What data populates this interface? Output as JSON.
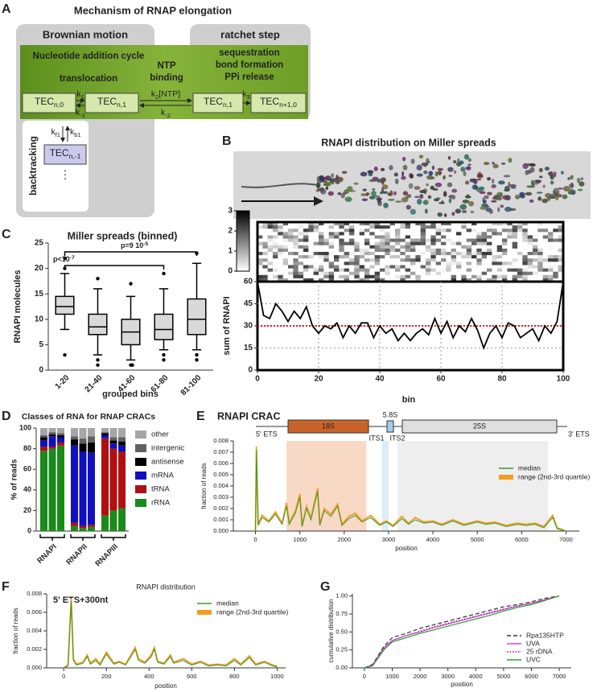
{
  "panels": [
    "A",
    "B",
    "C",
    "D",
    "E",
    "F",
    "G"
  ],
  "diagram": {
    "title": "Mechanism of RNAP elongation",
    "brownian": "Brownian motion",
    "ratchet": "ratchet step",
    "cycle": "Nucleotide addition cycle",
    "translocation": "translocation",
    "ntp": [
      "NTP",
      "binding"
    ],
    "ratchet_steps": [
      "sequestration",
      "bond formation",
      "PPi release"
    ],
    "tec": [
      {
        "main": "TEC",
        "sub": "n,0"
      },
      {
        "main": "TEC",
        "sub": "n,1"
      },
      {
        "main": "TEC",
        "sub": "n,1"
      },
      {
        "main": "TEC",
        "sub": "n+1,0"
      }
    ],
    "rates": [
      {
        "main": "k",
        "sub": "1"
      },
      {
        "main": "k",
        "sub": "-1"
      },
      {
        "main": "k",
        "sub": "2",
        "tail": "[NTP]"
      },
      {
        "main": "k",
        "sub": "-2"
      },
      {
        "main": "k",
        "sub": "3"
      }
    ],
    "backtracking": "backtracking",
    "backtrack_rates": [
      {
        "main": "k",
        "sub": "f1"
      },
      {
        "main": "k",
        "sub": "b1"
      }
    ],
    "backtrack_tec": {
      "main": "TEC",
      "sub": "n,-1"
    },
    "dots": "⋮"
  },
  "chart_data": [
    {
      "type": "box",
      "title": "Miller spreads (binned)",
      "x_label": "grouped bins",
      "y_label": "RNAPI molecules",
      "categories": [
        "1-20",
        "21-40",
        "41-60",
        "61-80",
        "81-100"
      ],
      "boxes": [
        {
          "whislo": 8,
          "q1": 11,
          "med": 12.5,
          "q3": 14.5,
          "whishi": 19,
          "fliers": [
            3,
            20,
            22
          ]
        },
        {
          "whislo": 3,
          "q1": 7,
          "med": 8.5,
          "q3": 11,
          "whishi": 16,
          "fliers": [
            1,
            2,
            18
          ]
        },
        {
          "whislo": 2,
          "q1": 5,
          "med": 7.5,
          "q3": 10,
          "whishi": 14.5,
          "fliers": [
            1,
            1,
            17
          ]
        },
        {
          "whislo": 4,
          "q1": 6,
          "med": 8,
          "q3": 11,
          "whishi": 16,
          "fliers": [
            2,
            3,
            19
          ]
        },
        {
          "whislo": 4,
          "q1": 7,
          "med": 10,
          "q3": 14,
          "whishi": 21,
          "fliers": [
            2,
            3,
            23
          ]
        }
      ],
      "color": "#d9d9d9",
      "ylim": [
        0,
        25
      ],
      "yticks": [
        0,
        5,
        10,
        15,
        20,
        25
      ],
      "annotations": [
        {
          "text": "p<10",
          "sup": "-7"
        },
        {
          "text": "p=9 10",
          "sup": "-5"
        }
      ]
    },
    {
      "type": "heatmap",
      "clim": [
        0,
        3
      ],
      "cticks": [
        0,
        1,
        2,
        3
      ]
    },
    {
      "type": "line",
      "title": "RNAPI distribution on Miller spreads",
      "x_label": "bin",
      "y_label": "sum of RNAPI",
      "x": [
        0,
        2,
        4,
        6,
        8,
        10,
        12,
        14,
        16,
        18,
        20,
        22,
        24,
        26,
        28,
        30,
        32,
        34,
        36,
        38,
        40,
        42,
        44,
        46,
        48,
        50,
        52,
        54,
        56,
        58,
        60,
        62,
        64,
        66,
        68,
        70,
        72,
        74,
        76,
        78,
        80,
        82,
        84,
        86,
        88,
        90,
        92,
        94,
        96,
        98,
        100
      ],
      "series": [
        {
          "name": "sum",
          "color": "#000000",
          "values": [
            60,
            37,
            35,
            45,
            40,
            33,
            40,
            35,
            43,
            30,
            25,
            30,
            28,
            32,
            22,
            30,
            25,
            32,
            32,
            22,
            30,
            25,
            28,
            20,
            25,
            20,
            25,
            28,
            24,
            35,
            25,
            33,
            22,
            30,
            26,
            35,
            27,
            15,
            25,
            30,
            22,
            32,
            30,
            22,
            25,
            28,
            20,
            30,
            25,
            33,
            60
          ]
        }
      ],
      "xlim": [
        0,
        100
      ],
      "xticks": [
        0,
        20,
        40,
        60,
        80,
        100
      ],
      "ylim": [
        0,
        60
      ],
      "yticks": [
        0,
        15,
        30,
        45,
        60
      ],
      "grid": true,
      "reference_line": {
        "value": 30,
        "color": "#e00000"
      }
    },
    {
      "type": "stacked_bar",
      "title": "Classes of RNA for RNAP CRACs",
      "y_label": "% of reads",
      "categories": [
        null,
        null,
        null,
        null,
        null,
        null,
        null,
        null,
        null
      ],
      "groups": [
        "RNAPI",
        "RNAPII",
        "RNAPIII"
      ],
      "series": [
        {
          "name": "rRNA",
          "color": "#1a8a1a",
          "values": [
            78,
            80,
            83,
            5,
            3,
            4,
            15,
            20,
            22
          ]
        },
        {
          "name": "tRNA",
          "color": "#b01010",
          "values": [
            4,
            2,
            3,
            3,
            2,
            2,
            75,
            60,
            55
          ]
        },
        {
          "name": "mRNA",
          "color": "#1010c0",
          "values": [
            6,
            10,
            5,
            75,
            72,
            70,
            3,
            5,
            6
          ]
        },
        {
          "name": "antisense",
          "color": "#000000",
          "values": [
            3,
            2,
            2,
            6,
            8,
            10,
            2,
            3,
            4
          ]
        },
        {
          "name": "intergenic",
          "color": "#606060",
          "values": [
            2,
            2,
            2,
            3,
            5,
            6,
            1,
            3,
            4
          ]
        },
        {
          "name": "other",
          "color": "#a6a6a6",
          "values": [
            7,
            4,
            5,
            8,
            10,
            8,
            4,
            9,
            9
          ]
        }
      ],
      "ylim": [
        0,
        100
      ],
      "yticks": [
        0,
        20,
        40,
        60,
        80,
        100
      ]
    },
    {
      "type": "line",
      "title": "RNAPI CRAC",
      "x_label": "position",
      "y_label": "fraction of reads",
      "gene_map": [
        "5' ETS",
        "18S",
        "5.8S",
        "ITS1",
        "ITS2",
        "25S",
        "3' ETS"
      ],
      "shaded_regions": [
        {
          "start": 700,
          "end": 2500,
          "color": "#f7d9c6"
        },
        {
          "start": 2850,
          "end": 3000,
          "color": "#dcecf8"
        },
        {
          "start": 3200,
          "end": 6600,
          "color": "#eeeeee"
        }
      ],
      "x": [
        0,
        20,
        60,
        150,
        300,
        450,
        600,
        700,
        760,
        900,
        1000,
        1050,
        1150,
        1250,
        1400,
        1450,
        1550,
        1700,
        1850,
        1950,
        2100,
        2250,
        2400,
        2600,
        2800,
        2950,
        3100,
        3300,
        3450,
        3600,
        3800,
        4000,
        4200,
        4450,
        4700,
        5000,
        5200,
        5400,
        5650,
        5900,
        6100,
        6300,
        6500,
        6700,
        6800,
        7000
      ],
      "series": [
        {
          "name": "range (2nd-3rd quartile)",
          "color": "#f39c1f",
          "values": [
            0,
            0.0075,
            0.0006,
            0.0014,
            0.0009,
            0.0017,
            0.0007,
            0.0025,
            0.0007,
            0.0018,
            0.0033,
            0.0005,
            0.0022,
            0.0012,
            0.0038,
            0.0006,
            0.002,
            0.0015,
            0.0024,
            0.0006,
            0.0013,
            0.0016,
            0.0009,
            0.0014,
            0.0006,
            0.0009,
            0.0005,
            0.0013,
            0.0007,
            0.0012,
            0.0008,
            0.0009,
            0.0006,
            0.001,
            0.0006,
            0.0009,
            0.0007,
            0.0008,
            0.0005,
            0.0007,
            0.0006,
            0.0007,
            0.0004,
            0.0014,
            0.0003,
            0
          ]
        },
        {
          "name": "median",
          "color": "#3a9a2a",
          "values": [
            0,
            0.0072,
            0.0005,
            0.0012,
            0.0008,
            0.0015,
            0.0006,
            0.0022,
            0.0006,
            0.0016,
            0.003,
            0.0004,
            0.002,
            0.001,
            0.0035,
            0.0005,
            0.0018,
            0.0013,
            0.0022,
            0.0005,
            0.0011,
            0.0014,
            0.0008,
            0.0012,
            0.0005,
            0.0008,
            0.0004,
            0.0011,
            0.0006,
            0.001,
            0.0007,
            0.0008,
            0.0005,
            0.0009,
            0.0005,
            0.0008,
            0.0006,
            0.0007,
            0.0004,
            0.0006,
            0.0005,
            0.0006,
            0.0003,
            0.0012,
            0.0002,
            0
          ]
        }
      ],
      "xlim": [
        -500,
        7300
      ],
      "xticks": [
        0,
        1000,
        2000,
        3000,
        4000,
        5000,
        6000,
        7000
      ],
      "ylim": [
        0,
        0.008
      ],
      "yticks": [
        {
          "value": 0,
          "label": "0.000"
        },
        {
          "value": 0.001,
          "label": "0.001"
        },
        {
          "value": 0.002,
          "label": "0.002"
        },
        {
          "value": 0.003,
          "label": "0.003"
        },
        {
          "value": 0.004,
          "label": "0.004"
        },
        {
          "value": 0.005,
          "label": "0.005"
        },
        {
          "value": 0.006,
          "label": "0.006"
        },
        {
          "value": 0.007,
          "label": "0.007"
        },
        {
          "value": 0.008,
          "label": "0.008"
        }
      ],
      "legend": "upper right"
    },
    {
      "type": "line",
      "title": "RNAPI distribution",
      "annotation": "5' ETS+300nt",
      "x_label": "position",
      "y_label": "fraction of reads",
      "x": [
        0,
        20,
        35,
        45,
        60,
        90,
        110,
        125,
        150,
        170,
        200,
        215,
        235,
        260,
        290,
        320,
        335,
        350,
        380,
        410,
        425,
        440,
        470,
        500,
        515,
        560,
        600,
        640,
        680,
        720,
        760,
        800,
        830,
        870,
        900,
        940,
        980,
        1000
      ],
      "series": [
        {
          "name": "range (2nd-3rd quartile)",
          "color": "#f39c1f",
          "values": [
            0,
            0.0003,
            0.0075,
            0.001,
            0.0004,
            0.0006,
            0.0014,
            0.0005,
            0.001,
            0.0004,
            0.0017,
            0.0012,
            0.0005,
            0.0007,
            0.0004,
            0.0016,
            0.0022,
            0.001,
            0.0006,
            0.0014,
            0.0022,
            0.0007,
            0.0005,
            0.0014,
            0.0006,
            0.001,
            0.0004,
            0.0007,
            0.0003,
            0.0004,
            0.0003,
            0.001,
            0.0004,
            0.0013,
            0.0004,
            0.0007,
            0.0003,
            0.0002
          ]
        },
        {
          "name": "median",
          "color": "#3a9a2a",
          "values": [
            0,
            0.0002,
            0.0072,
            0.0008,
            0.0003,
            0.0005,
            0.0012,
            0.0004,
            0.0008,
            0.0003,
            0.0015,
            0.001,
            0.0004,
            0.0006,
            0.0003,
            0.0014,
            0.002,
            0.0008,
            0.0005,
            0.0012,
            0.002,
            0.0006,
            0.0004,
            0.0012,
            0.0005,
            0.0008,
            0.0003,
            0.0006,
            0.0002,
            0.0003,
            0.0002,
            0.0008,
            0.0003,
            0.0011,
            0.0003,
            0.0006,
            0.0002,
            0.0001
          ]
        }
      ],
      "xlim": [
        -80,
        1040
      ],
      "xticks": [
        0,
        200,
        400,
        600,
        800,
        1000
      ],
      "ylim": [
        0,
        0.008
      ],
      "yticks": [
        {
          "value": 0,
          "label": "0.000"
        },
        {
          "value": 0.002,
          "label": "0.002"
        },
        {
          "value": 0.004,
          "label": "0.004"
        },
        {
          "value": 0.006,
          "label": "0.006"
        },
        {
          "value": 0.008,
          "label": "0.008"
        }
      ],
      "legend": "upper right"
    },
    {
      "type": "line",
      "x_label": "position",
      "y_label": "cumulative distribution",
      "x": [
        0,
        300,
        700,
        1000,
        1500,
        2000,
        2500,
        3000,
        3500,
        4000,
        4500,
        5000,
        5500,
        6000,
        6500,
        7000
      ],
      "series": [
        {
          "name": "Rpa135HTP",
          "color": "#333333",
          "linestyle": "dashed",
          "values": [
            0,
            0.05,
            0.3,
            0.42,
            0.48,
            0.55,
            0.6,
            0.65,
            0.7,
            0.75,
            0.8,
            0.85,
            0.88,
            0.92,
            0.97,
            1.0
          ]
        },
        {
          "name": "UVA",
          "color": "#e040e0",
          "linestyle": "solid",
          "values": [
            0,
            0.04,
            0.28,
            0.38,
            0.45,
            0.5,
            0.56,
            0.61,
            0.66,
            0.71,
            0.76,
            0.81,
            0.86,
            0.9,
            0.95,
            1.0
          ]
        },
        {
          "name": "25 rDNA",
          "color": "#8b1a8b",
          "linestyle": "dotted",
          "values": [
            0,
            0.04,
            0.27,
            0.38,
            0.45,
            0.51,
            0.57,
            0.62,
            0.67,
            0.72,
            0.77,
            0.82,
            0.86,
            0.9,
            0.95,
            1.0
          ]
        },
        {
          "name": "UVC",
          "color": "#2ca02c",
          "linestyle": "solid",
          "values": [
            0,
            0.03,
            0.25,
            0.36,
            0.42,
            0.48,
            0.53,
            0.58,
            0.63,
            0.68,
            0.73,
            0.79,
            0.84,
            0.88,
            0.94,
            1.0
          ]
        }
      ],
      "xlim": [
        -430,
        7430
      ],
      "xticks": [
        0,
        1000,
        2000,
        3000,
        4000,
        5000,
        6000,
        7000
      ],
      "ylim": [
        0,
        1.03
      ],
      "yticks": [
        {
          "value": 0,
          "label": "0.00"
        },
        {
          "value": 0.25,
          "label": "0.25"
        },
        {
          "value": 0.5,
          "label": "0.50"
        },
        {
          "value": 0.75,
          "label": "0.75"
        },
        {
          "value": 1,
          "label": "1.00"
        }
      ],
      "legend": "lower right"
    }
  ]
}
